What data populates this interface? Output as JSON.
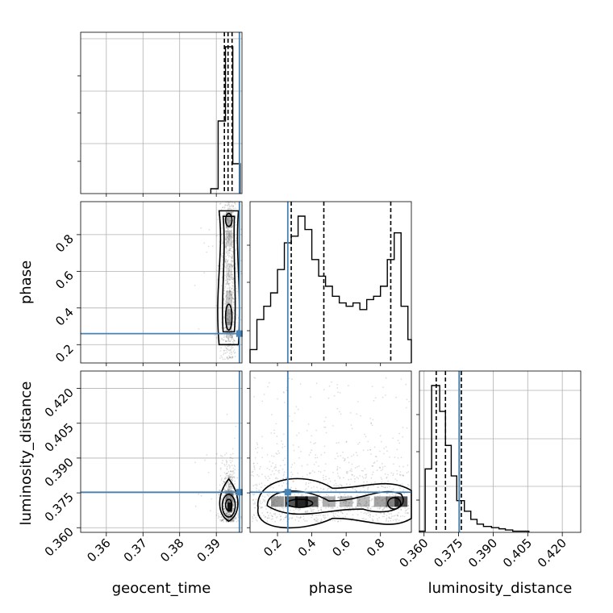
{
  "chart_data": [
    {
      "id": "geocent_time_hist",
      "type": "histogram",
      "parameter": "geocent_time",
      "xlim": [
        0.353,
        0.397
      ],
      "bins": [
        {
          "x0": 0.3885,
          "x1": 0.3905,
          "count": 6
        },
        {
          "x0": 0.3905,
          "x1": 0.3925,
          "count": 90
        },
        {
          "x0": 0.3925,
          "x1": 0.3945,
          "count": 182
        },
        {
          "x0": 0.3945,
          "x1": 0.3965,
          "count": 37
        }
      ],
      "quantile_lines": [
        0.3922,
        0.3932,
        0.3943
      ],
      "truth": 0.3963,
      "grid": true
    },
    {
      "id": "phase_hist",
      "type": "histogram",
      "parameter": "phase",
      "xlim": [
        0.04,
        0.98
      ],
      "bins": [
        {
          "x0": 0.04,
          "x1": 0.08,
          "count": 4
        },
        {
          "x0": 0.08,
          "x1": 0.12,
          "count": 13
        },
        {
          "x0": 0.12,
          "x1": 0.16,
          "count": 17
        },
        {
          "x0": 0.16,
          "x1": 0.2,
          "count": 21
        },
        {
          "x0": 0.2,
          "x1": 0.24,
          "count": 28
        },
        {
          "x0": 0.24,
          "x1": 0.28,
          "count": 36
        },
        {
          "x0": 0.28,
          "x1": 0.32,
          "count": 38
        },
        {
          "x0": 0.32,
          "x1": 0.36,
          "count": 44
        },
        {
          "x0": 0.36,
          "x1": 0.4,
          "count": 40
        },
        {
          "x0": 0.4,
          "x1": 0.44,
          "count": 31
        },
        {
          "x0": 0.44,
          "x1": 0.48,
          "count": 26
        },
        {
          "x0": 0.48,
          "x1": 0.52,
          "count": 23
        },
        {
          "x0": 0.52,
          "x1": 0.56,
          "count": 20
        },
        {
          "x0": 0.56,
          "x1": 0.6,
          "count": 18
        },
        {
          "x0": 0.6,
          "x1": 0.64,
          "count": 17
        },
        {
          "x0": 0.64,
          "x1": 0.68,
          "count": 18
        },
        {
          "x0": 0.68,
          "x1": 0.72,
          "count": 16
        },
        {
          "x0": 0.72,
          "x1": 0.76,
          "count": 19
        },
        {
          "x0": 0.76,
          "x1": 0.8,
          "count": 20
        },
        {
          "x0": 0.8,
          "x1": 0.84,
          "count": 23
        },
        {
          "x0": 0.84,
          "x1": 0.88,
          "count": 31
        },
        {
          "x0": 0.88,
          "x1": 0.92,
          "count": 39
        },
        {
          "x0": 0.92,
          "x1": 0.96,
          "count": 17
        },
        {
          "x0": 0.96,
          "x1": 0.98,
          "count": 7
        }
      ],
      "quantile_lines": [
        0.28,
        0.47,
        0.86
      ],
      "truth": 0.26,
      "grid": false
    },
    {
      "id": "luminosity_distance_hist",
      "type": "histogram",
      "parameter": "luminosity_distance",
      "xlim": [
        0.358,
        0.428
      ],
      "bins": [
        {
          "x0": 0.358,
          "x1": 0.3605,
          "count": 1
        },
        {
          "x0": 0.3605,
          "x1": 0.3633,
          "count": 54
        },
        {
          "x0": 0.3633,
          "x1": 0.3668,
          "count": 125
        },
        {
          "x0": 0.3668,
          "x1": 0.3693,
          "count": 103
        },
        {
          "x0": 0.3693,
          "x1": 0.3718,
          "count": 74
        },
        {
          "x0": 0.3718,
          "x1": 0.3742,
          "count": 48
        },
        {
          "x0": 0.3742,
          "x1": 0.3775,
          "count": 27
        },
        {
          "x0": 0.3775,
          "x1": 0.3803,
          "count": 18
        },
        {
          "x0": 0.3803,
          "x1": 0.383,
          "count": 11
        },
        {
          "x0": 0.383,
          "x1": 0.3858,
          "count": 7
        },
        {
          "x0": 0.3858,
          "x1": 0.3893,
          "count": 5
        },
        {
          "x0": 0.3893,
          "x1": 0.3925,
          "count": 4
        },
        {
          "x0": 0.3925,
          "x1": 0.3953,
          "count": 3
        },
        {
          "x0": 0.3953,
          "x1": 0.3985,
          "count": 2
        },
        {
          "x0": 0.3985,
          "x1": 0.4055,
          "count": 1
        }
      ],
      "quantile_lines": [
        0.3653,
        0.3693,
        0.3762
      ],
      "truth": 0.3753,
      "grid": true,
      "xticks": [
        0.36,
        0.375,
        0.39,
        0.405,
        0.42
      ],
      "xtick_labels": [
        "0.360",
        "0.375",
        "0.390",
        "0.405",
        "0.420"
      ],
      "xlabel": "luminosity_distance"
    },
    {
      "id": "geocent_time_vs_phase",
      "type": "2d-histogram-contour",
      "x_parameter": "geocent_time",
      "y_parameter": "phase",
      "xlim": [
        0.353,
        0.397
      ],
      "ylim": [
        0.1,
        0.98
      ],
      "yticks": [
        0.2,
        0.4,
        0.6,
        0.8
      ],
      "ytick_labels": [
        "0.2",
        "0.4",
        "0.6",
        "0.8"
      ],
      "ylabel": "phase",
      "sample_region": {
        "x_center": 0.3935,
        "x_spread": 0.0013,
        "y_range": [
          0.12,
          0.98
        ]
      },
      "density_peaks": [
        [
          0.3934,
          0.35
        ],
        [
          0.3934,
          0.88
        ]
      ],
      "truth": [
        0.3963,
        0.26
      ],
      "grid": true
    },
    {
      "id": "geocent_time_vs_luminosity_distance",
      "type": "2d-histogram-contour",
      "x_parameter": "geocent_time",
      "y_parameter": "luminosity_distance",
      "xlim": [
        0.353,
        0.397
      ],
      "ylim": [
        0.358,
        0.4275
      ],
      "xticks": [
        0.36,
        0.37,
        0.38,
        0.39
      ],
      "xtick_labels": [
        "0.36",
        "0.37",
        "0.38",
        "0.39"
      ],
      "yticks": [
        0.36,
        0.375,
        0.39,
        0.405,
        0.42
      ],
      "ytick_labels": [
        "0.360",
        "0.375",
        "0.390",
        "0.405",
        "0.420"
      ],
      "xlabel": "geocent_time",
      "ylabel": "luminosity_distance",
      "density_peaks": [
        [
          0.3934,
          0.37
        ]
      ],
      "truth": [
        0.3963,
        0.3753
      ],
      "grid": true
    },
    {
      "id": "phase_vs_luminosity_distance",
      "type": "2d-histogram-contour",
      "x_parameter": "phase",
      "y_parameter": "luminosity_distance",
      "xlim": [
        0.04,
        0.98
      ],
      "ylim": [
        0.358,
        0.4275
      ],
      "xticks": [
        0.2,
        0.4,
        0.6,
        0.8
      ],
      "xtick_labels": [
        "0.2",
        "0.4",
        "0.6",
        "0.8"
      ],
      "xlabel": "phase",
      "density_peaks": [
        [
          0.28,
          0.37
        ],
        [
          0.9,
          0.37
        ]
      ],
      "truth": [
        0.26,
        0.3753
      ],
      "grid": false
    }
  ],
  "colors": {
    "truth": "#4682b4",
    "grid": "#b0b0b0",
    "axis": "#000000",
    "contour": "#000000"
  }
}
